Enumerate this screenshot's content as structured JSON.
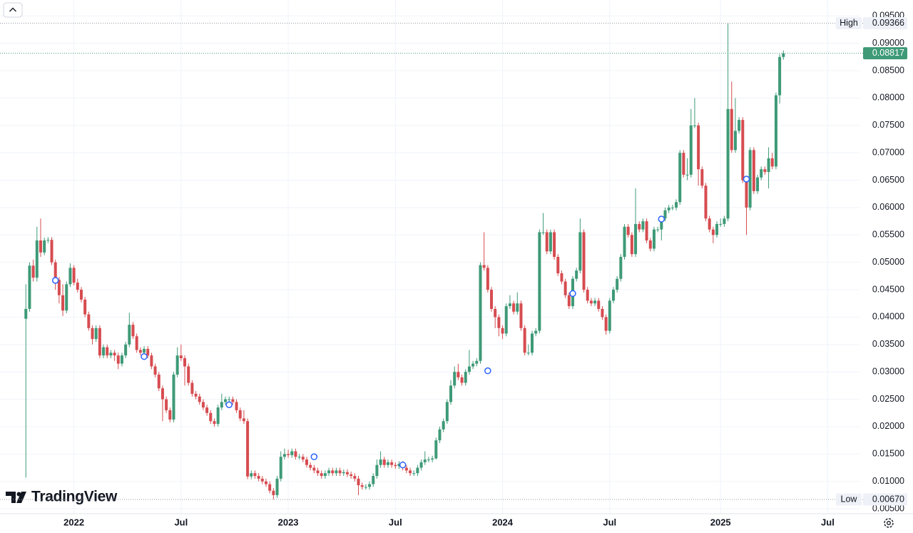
{
  "logo": "TradingView",
  "chart_data": {
    "type": "candlestick",
    "up_color": "#3e9a77",
    "down_color": "#d64c50",
    "open": [
      0.0397,
      0.0415,
      0.0494,
      0.0472,
      0.054,
      0.0518,
      0.054,
      0.0541,
      0.05,
      0.0468,
      0.044,
      0.0412,
      0.046,
      0.049,
      0.0463,
      0.045,
      0.0432,
      0.0405,
      0.038,
      0.036,
      0.038,
      0.033,
      0.0345,
      0.033,
      0.0335,
      0.033,
      0.0315,
      0.033,
      0.035,
      0.0386,
      0.0365,
      0.034,
      0.0335,
      0.0342,
      0.033,
      0.031,
      0.0295,
      0.027,
      0.025,
      0.023,
      0.0213,
      0.0295,
      0.033,
      0.0325,
      0.031,
      0.028,
      0.026,
      0.0255,
      0.0245,
      0.0235,
      0.0225,
      0.021,
      0.0205,
      0.0235,
      0.0245,
      0.025,
      0.025,
      0.0245,
      0.023,
      0.0215,
      0.021,
      0.0109,
      0.0115,
      0.011,
      0.0105,
      0.01,
      0.0095,
      0.0083,
      0.0075,
      0.0105,
      0.0145,
      0.015,
      0.0148,
      0.0155,
      0.0145,
      0.0145,
      0.014,
      0.013,
      0.0125,
      0.012,
      0.0115,
      0.011,
      0.0115,
      0.012,
      0.0115,
      0.012,
      0.0115,
      0.0117,
      0.0113,
      0.011,
      0.0105,
      0.0093,
      0.009,
      0.009,
      0.0095,
      0.011,
      0.013,
      0.014,
      0.013,
      0.0135,
      0.013,
      0.0128,
      0.0132,
      0.0125,
      0.012,
      0.0115,
      0.0115,
      0.0125,
      0.0135,
      0.014,
      0.014,
      0.0142,
      0.0175,
      0.0195,
      0.021,
      0.0245,
      0.0275,
      0.03,
      0.029,
      0.028,
      0.03,
      0.031,
      0.0315,
      0.032,
      0.0495,
      0.049,
      0.045,
      0.0415,
      0.04,
      0.038,
      0.037,
      0.042,
      0.0425,
      0.041,
      0.0425,
      0.038,
      0.0335,
      0.0335,
      0.037,
      0.0375,
      0.0555,
      0.0555,
      0.052,
      0.0555,
      0.051,
      0.048,
      0.0465,
      0.044,
      0.042,
      0.047,
      0.0485,
      0.0555,
      0.045,
      0.043,
      0.0425,
      0.043,
      0.0415,
      0.04,
      0.0375,
      0.043,
      0.045,
      0.047,
      0.051,
      0.0565,
      0.055,
      0.0515,
      0.057,
      0.056,
      0.0575,
      0.054,
      0.0525,
      0.056,
      0.056,
      0.058,
      0.0595,
      0.06,
      0.06,
      0.061,
      0.07,
      0.066,
      0.066,
      0.075,
      0.075,
      0.067,
      0.064,
      0.058,
      0.056,
      0.055,
      0.057,
      0.057,
      0.058,
      0.078,
      0.0705,
      0.074,
      0.076,
      0.065,
      0.06,
      0.0705,
      0.063,
      0.0655,
      0.067,
      0.0665,
      0.069,
      0.0675,
      0.0805,
      0.0875
    ],
    "high": [
      0.046,
      0.05,
      0.0505,
      0.0565,
      0.058,
      0.0545,
      0.0546,
      0.0546,
      0.0505,
      0.0473,
      0.046,
      0.0465,
      0.0498,
      0.0495,
      0.047,
      0.0455,
      0.0437,
      0.041,
      0.0385,
      0.0385,
      0.0385,
      0.035,
      0.035,
      0.034,
      0.034,
      0.0335,
      0.0335,
      0.0355,
      0.0408,
      0.0391,
      0.037,
      0.0345,
      0.0347,
      0.0347,
      0.0335,
      0.0315,
      0.03,
      0.0275,
      0.0255,
      0.0235,
      0.03,
      0.0345,
      0.035,
      0.033,
      0.0315,
      0.0285,
      0.0265,
      0.026,
      0.025,
      0.024,
      0.023,
      0.0215,
      0.024,
      0.026,
      0.0255,
      0.0255,
      0.0255,
      0.025,
      0.0235,
      0.023,
      0.0215,
      0.012,
      0.012,
      0.0115,
      0.011,
      0.0105,
      0.01,
      0.0088,
      0.011,
      0.0155,
      0.016,
      0.0158,
      0.016,
      0.016,
      0.015,
      0.015,
      0.0145,
      0.0135,
      0.013,
      0.0125,
      0.012,
      0.012,
      0.0125,
      0.0125,
      0.0125,
      0.0125,
      0.0122,
      0.0122,
      0.0118,
      0.0115,
      0.011,
      0.0098,
      0.0095,
      0.01,
      0.0115,
      0.014,
      0.0155,
      0.0145,
      0.014,
      0.014,
      0.0135,
      0.0137,
      0.0137,
      0.013,
      0.0125,
      0.012,
      0.013,
      0.014,
      0.0155,
      0.0145,
      0.0147,
      0.018,
      0.02,
      0.0215,
      0.025,
      0.0285,
      0.031,
      0.0315,
      0.0295,
      0.0305,
      0.034,
      0.032,
      0.0325,
      0.05,
      0.0555,
      0.0495,
      0.0455,
      0.042,
      0.0405,
      0.0385,
      0.0425,
      0.044,
      0.043,
      0.0445,
      0.043,
      0.0385,
      0.035,
      0.0375,
      0.038,
      0.056,
      0.059,
      0.056,
      0.056,
      0.056,
      0.0515,
      0.0485,
      0.047,
      0.0445,
      0.0475,
      0.049,
      0.058,
      0.056,
      0.0455,
      0.0435,
      0.0435,
      0.0435,
      0.042,
      0.0405,
      0.0435,
      0.0455,
      0.0475,
      0.0515,
      0.057,
      0.057,
      0.0555,
      0.0635,
      0.0575,
      0.058,
      0.058,
      0.0545,
      0.0565,
      0.0565,
      0.0585,
      0.06,
      0.0605,
      0.0605,
      0.0615,
      0.0705,
      0.0705,
      0.069,
      0.078,
      0.08,
      0.0755,
      0.0675,
      0.0645,
      0.0585,
      0.0565,
      0.0575,
      0.058,
      0.0585,
      0.09366,
      0.083,
      0.08,
      0.0765,
      0.0765,
      0.0655,
      0.071,
      0.071,
      0.066,
      0.0675,
      0.0675,
      0.071,
      0.07,
      0.081,
      0.088,
      0.0887
    ],
    "low": [
      0.0107,
      0.041,
      0.0465,
      0.0465,
      0.051,
      0.0513,
      0.0535,
      0.0495,
      0.045,
      0.0425,
      0.0402,
      0.0407,
      0.0455,
      0.0458,
      0.0445,
      0.0427,
      0.04,
      0.0375,
      0.035,
      0.0355,
      0.0325,
      0.0325,
      0.0325,
      0.0325,
      0.032,
      0.0305,
      0.031,
      0.0325,
      0.0345,
      0.036,
      0.0335,
      0.033,
      0.033,
      0.0325,
      0.0305,
      0.029,
      0.0265,
      0.021,
      0.0225,
      0.0208,
      0.0208,
      0.029,
      0.032,
      0.0275,
      0.0275,
      0.0255,
      0.025,
      0.024,
      0.023,
      0.022,
      0.0205,
      0.02,
      0.02,
      0.023,
      0.024,
      0.0245,
      0.024,
      0.0225,
      0.021,
      0.0205,
      0.0104,
      0.0104,
      0.0105,
      0.01,
      0.0095,
      0.009,
      0.0078,
      0.0067,
      0.007,
      0.01,
      0.014,
      0.0143,
      0.0143,
      0.014,
      0.014,
      0.0135,
      0.0125,
      0.012,
      0.0115,
      0.011,
      0.0105,
      0.0105,
      0.011,
      0.011,
      0.011,
      0.011,
      0.011,
      0.0108,
      0.0105,
      0.01,
      0.0075,
      0.0085,
      0.0085,
      0.0085,
      0.009,
      0.0105,
      0.0125,
      0.0125,
      0.0125,
      0.0125,
      0.0123,
      0.0123,
      0.012,
      0.0115,
      0.011,
      0.011,
      0.011,
      0.012,
      0.013,
      0.0135,
      0.0135,
      0.014,
      0.017,
      0.019,
      0.0205,
      0.024,
      0.027,
      0.0285,
      0.0275,
      0.0275,
      0.0295,
      0.0305,
      0.031,
      0.0315,
      0.0485,
      0.0445,
      0.041,
      0.038,
      0.0365,
      0.036,
      0.0365,
      0.0415,
      0.0405,
      0.0405,
      0.0375,
      0.033,
      0.033,
      0.033,
      0.0365,
      0.037,
      0.055,
      0.0515,
      0.0515,
      0.0505,
      0.0475,
      0.046,
      0.0435,
      0.0415,
      0.0415,
      0.0465,
      0.048,
      0.0445,
      0.0425,
      0.042,
      0.042,
      0.041,
      0.0395,
      0.0368,
      0.037,
      0.0425,
      0.0445,
      0.0465,
      0.0505,
      0.0545,
      0.051,
      0.051,
      0.0555,
      0.0555,
      0.0535,
      0.052,
      0.052,
      0.0555,
      0.054,
      0.0575,
      0.059,
      0.0595,
      0.0595,
      0.0605,
      0.0655,
      0.065,
      0.0655,
      0.0745,
      0.064,
      0.0635,
      0.0575,
      0.0555,
      0.0535,
      0.0545,
      0.0565,
      0.0565,
      0.0575,
      0.07,
      0.07,
      0.0735,
      0.0645,
      0.055,
      0.0595,
      0.0625,
      0.0625,
      0.065,
      0.066,
      0.0635,
      0.067,
      0.067,
      0.079,
      0.087
    ],
    "close": [
      0.0415,
      0.0494,
      0.0472,
      0.054,
      0.0518,
      0.054,
      0.0541,
      0.05,
      0.0468,
      0.044,
      0.0412,
      0.046,
      0.049,
      0.0463,
      0.045,
      0.0432,
      0.0405,
      0.038,
      0.036,
      0.038,
      0.033,
      0.0345,
      0.033,
      0.0335,
      0.033,
      0.0315,
      0.033,
      0.035,
      0.0386,
      0.0365,
      0.034,
      0.0335,
      0.0342,
      0.033,
      0.031,
      0.0295,
      0.027,
      0.025,
      0.023,
      0.0213,
      0.0295,
      0.033,
      0.0325,
      0.031,
      0.028,
      0.026,
      0.0255,
      0.0245,
      0.0235,
      0.0225,
      0.021,
      0.0205,
      0.0235,
      0.0245,
      0.025,
      0.025,
      0.0245,
      0.023,
      0.0215,
      0.021,
      0.0109,
      0.0115,
      0.011,
      0.0105,
      0.01,
      0.0095,
      0.0083,
      0.0075,
      0.0105,
      0.0145,
      0.015,
      0.0148,
      0.0155,
      0.0145,
      0.0145,
      0.014,
      0.013,
      0.0125,
      0.012,
      0.0115,
      0.011,
      0.0115,
      0.012,
      0.0115,
      0.012,
      0.0115,
      0.0117,
      0.0113,
      0.011,
      0.0105,
      0.0093,
      0.009,
      0.009,
      0.0095,
      0.011,
      0.013,
      0.014,
      0.013,
      0.0135,
      0.013,
      0.0128,
      0.0132,
      0.0125,
      0.012,
      0.0115,
      0.0115,
      0.0125,
      0.0135,
      0.014,
      0.014,
      0.0142,
      0.0175,
      0.0195,
      0.021,
      0.0245,
      0.0275,
      0.03,
      0.029,
      0.028,
      0.03,
      0.031,
      0.0315,
      0.032,
      0.0495,
      0.049,
      0.045,
      0.0415,
      0.04,
      0.038,
      0.037,
      0.042,
      0.0425,
      0.041,
      0.0425,
      0.038,
      0.0335,
      0.0335,
      0.037,
      0.0375,
      0.0555,
      0.0555,
      0.052,
      0.0555,
      0.051,
      0.048,
      0.0465,
      0.044,
      0.042,
      0.047,
      0.0485,
      0.0555,
      0.045,
      0.043,
      0.0425,
      0.043,
      0.0415,
      0.04,
      0.0375,
      0.043,
      0.045,
      0.047,
      0.051,
      0.0565,
      0.055,
      0.0515,
      0.057,
      0.056,
      0.0575,
      0.054,
      0.0525,
      0.056,
      0.056,
      0.058,
      0.0595,
      0.06,
      0.06,
      0.061,
      0.07,
      0.066,
      0.066,
      0.075,
      0.075,
      0.067,
      0.064,
      0.058,
      0.056,
      0.055,
      0.057,
      0.057,
      0.058,
      0.078,
      0.0705,
      0.074,
      0.076,
      0.065,
      0.06,
      0.0705,
      0.063,
      0.0655,
      0.067,
      0.0665,
      0.069,
      0.0675,
      0.0805,
      0.0875,
      0.08817
    ],
    "xlim": [
      -7,
      225.6
    ],
    "xticks": [
      {
        "value": 13,
        "label": "2022"
      },
      {
        "value": 42,
        "label": "Jul"
      },
      {
        "value": 71,
        "label": "2023"
      },
      {
        "value": 100,
        "label": "Jul"
      },
      {
        "value": 129,
        "label": "2024"
      },
      {
        "value": 158,
        "label": "Jul"
      },
      {
        "value": 188,
        "label": "2025"
      },
      {
        "value": 217,
        "label": "Jul"
      }
    ],
    "ylim": [
      0.0041,
      0.0979
    ],
    "yticks": [
      {
        "value": 0.005,
        "label": "0.00500"
      },
      {
        "value": 0.01,
        "label": "0.01000"
      },
      {
        "value": 0.015,
        "label": "0.01500"
      },
      {
        "value": 0.02,
        "label": "0.02000"
      },
      {
        "value": 0.025,
        "label": "0.02500"
      },
      {
        "value": 0.03,
        "label": "0.03000"
      },
      {
        "value": 0.035,
        "label": "0.03500"
      },
      {
        "value": 0.04,
        "label": "0.04000"
      },
      {
        "value": 0.045,
        "label": "0.04500"
      },
      {
        "value": 0.05,
        "label": "0.05000"
      },
      {
        "value": 0.055,
        "label": "0.05500"
      },
      {
        "value": 0.06,
        "label": "0.06000"
      },
      {
        "value": 0.065,
        "label": "0.06500"
      },
      {
        "value": 0.07,
        "label": "0.07000"
      },
      {
        "value": 0.075,
        "label": "0.07500"
      },
      {
        "value": 0.08,
        "label": "0.08000"
      },
      {
        "value": 0.085,
        "label": "0.08500"
      },
      {
        "value": 0.09,
        "label": "0.09000"
      },
      {
        "value": 0.095,
        "label": "0.09500"
      }
    ],
    "grid": true,
    "markers": {
      "color": "#2962ff",
      "x": [
        8,
        32,
        55,
        78,
        102,
        125,
        148,
        172,
        195
      ],
      "values": [
        0.0467,
        0.0328,
        0.024,
        0.0145,
        0.013,
        0.0302,
        0.0443,
        0.0579,
        0.0652
      ]
    },
    "price_lines": [
      {
        "name": "High",
        "value": 0.09366
      },
      {
        "value": 0.08817,
        "color": "#3e9a77"
      },
      {
        "name": "Low",
        "value": 0.0067,
        "value_label": "0.00670"
      }
    ]
  }
}
